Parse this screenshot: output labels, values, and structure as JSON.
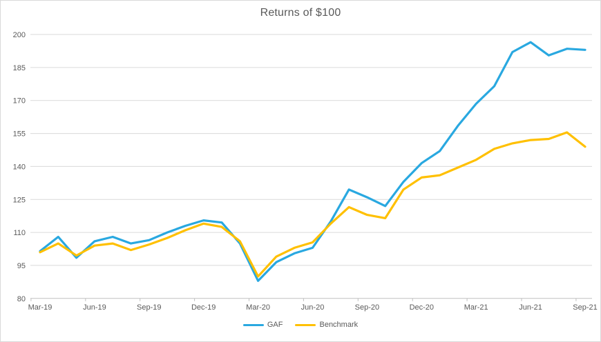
{
  "chart_data": {
    "type": "line",
    "title": "Returns of $100",
    "categories": [
      "Mar-19",
      "Apr-19",
      "May-19",
      "Jun-19",
      "Jul-19",
      "Aug-19",
      "Sep-19",
      "Oct-19",
      "Nov-19",
      "Dec-19",
      "Jan-20",
      "Feb-20",
      "Mar-20",
      "Apr-20",
      "May-20",
      "Jun-20",
      "Jul-20",
      "Aug-20",
      "Sep-20",
      "Oct-20",
      "Nov-20",
      "Dec-20",
      "Jan-21",
      "Feb-21",
      "Mar-21",
      "Apr-21",
      "May-21",
      "Jun-21",
      "Jul-21",
      "Aug-21",
      "Sep-21"
    ],
    "x_tick_labels": [
      "Mar-19",
      "Jun-19",
      "Sep-19",
      "Dec-19",
      "Mar-20",
      "Jun-20",
      "Sep-20",
      "Dec-20",
      "Mar-21",
      "Jun-21",
      "Sep-21"
    ],
    "x_tick_indices": [
      0,
      3,
      6,
      9,
      12,
      15,
      18,
      21,
      24,
      27,
      30
    ],
    "y_ticks": [
      80,
      95,
      110,
      125,
      140,
      155,
      170,
      185,
      200
    ],
    "ylim": [
      80,
      200
    ],
    "grid": true,
    "legend_position": "bottom",
    "series": [
      {
        "name": "GAF",
        "color": "#29A8E0",
        "values": [
          101.5,
          108,
          98.5,
          106,
          108,
          105,
          106.5,
          110,
          113,
          115.5,
          114.5,
          105,
          88,
          96.5,
          100.5,
          103,
          115,
          129.5,
          126,
          122,
          133,
          141.5,
          147,
          158.5,
          168.5,
          176.5,
          192,
          196.5,
          190.5,
          193.5,
          193
        ]
      },
      {
        "name": "Benchmark",
        "color": "#FFC000",
        "values": [
          101,
          105,
          99.5,
          104,
          105,
          102,
          104.5,
          107.5,
          111,
          114,
          112.5,
          106,
          90,
          99,
          103,
          105.5,
          114,
          121.5,
          118,
          116.5,
          129.5,
          135,
          136,
          139.5,
          143,
          148,
          150.5,
          152,
          152.5,
          155.5,
          149
        ]
      }
    ],
    "colors": {
      "grid": "#D9D9D9",
      "axis": "#BFBFBF",
      "text": "#595959",
      "border": "#D9D9D9",
      "background": "#FFFFFF"
    }
  }
}
